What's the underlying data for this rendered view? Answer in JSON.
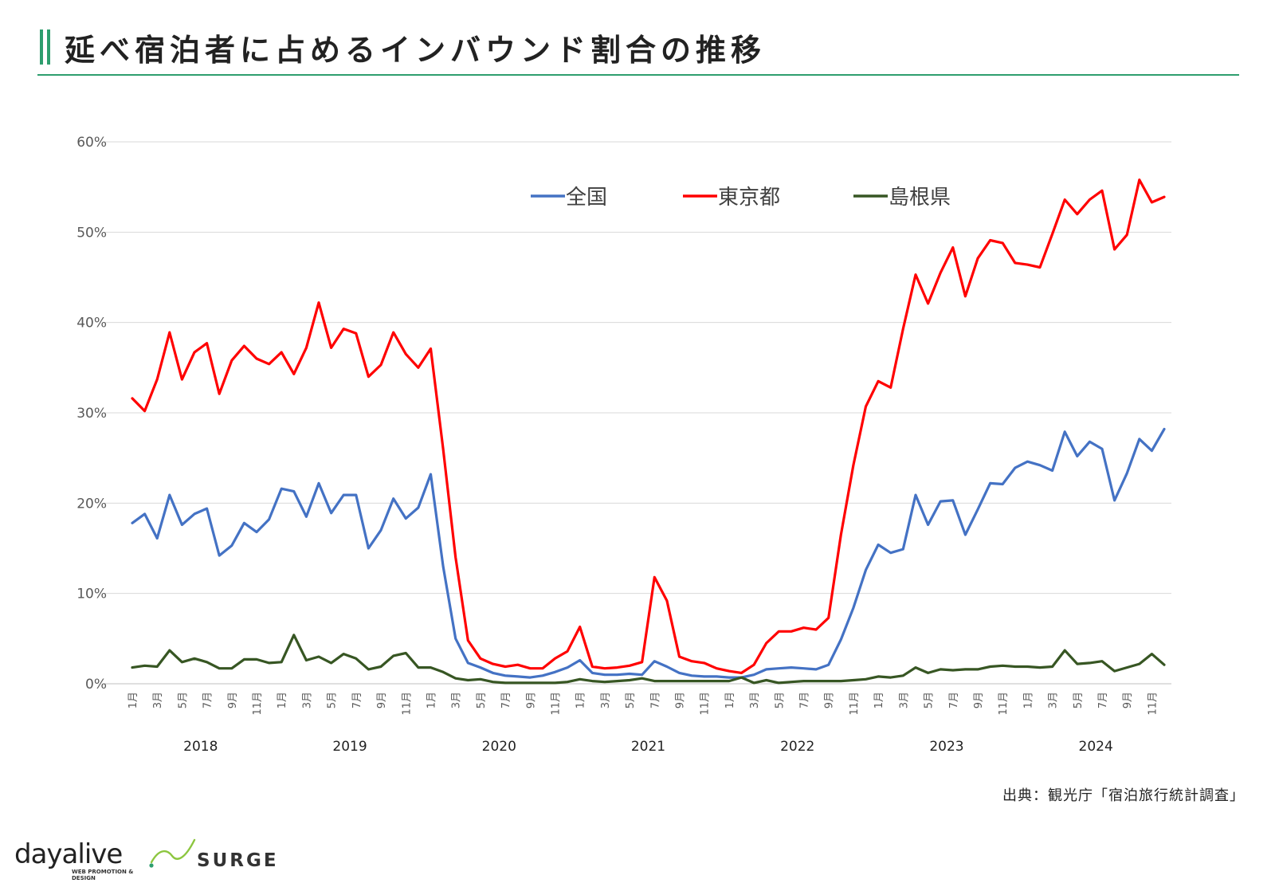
{
  "page": {
    "title": "延べ宿泊者に占めるインバウンド割合の推移",
    "source": "出典：観光庁「宿泊旅行統計調査」",
    "logos": {
      "dayalive": "dayalive",
      "dayalive_sub": "WEB PROMOTION & DESIGN",
      "surge": "SURGE"
    }
  },
  "colors": {
    "accent": "#2e9e6e",
    "national": "#4472c4",
    "tokyo": "#ff0000",
    "shimane": "#375623"
  },
  "chart_data": {
    "type": "line",
    "title": "延べ宿泊者に占めるインバウンド割合の推移",
    "xlabel": "",
    "ylabel": "",
    "ylim": [
      0,
      60
    ],
    "yticks": [
      "0%",
      "10%",
      "20%",
      "30%",
      "40%",
      "50%",
      "60%"
    ],
    "grid": true,
    "legend_position": "top",
    "month_tick_labels": [
      "1月",
      "3月",
      "5月",
      "7月",
      "9月",
      "11月"
    ],
    "years": [
      "2018",
      "2019",
      "2020",
      "2021",
      "2022",
      "2023",
      "2024"
    ],
    "series": [
      {
        "name": "全国",
        "color": "#4472c4",
        "values": [
          17.8,
          18.8,
          16.1,
          20.9,
          17.6,
          18.8,
          19.4,
          14.2,
          15.3,
          17.8,
          16.8,
          18.2,
          21.6,
          21.3,
          18.5,
          22.2,
          18.9,
          20.9,
          20.9,
          15.0,
          17.0,
          20.5,
          18.3,
          19.5,
          23.2,
          13.0,
          5.0,
          2.3,
          1.8,
          1.2,
          0.9,
          0.8,
          0.7,
          0.9,
          1.3,
          1.8,
          2.6,
          1.2,
          1.0,
          1.0,
          1.1,
          1.0,
          2.5,
          1.9,
          1.2,
          0.9,
          0.8,
          0.8,
          0.7,
          0.7,
          1.0,
          1.6,
          1.7,
          1.8,
          1.7,
          1.6,
          2.1,
          4.9,
          8.4,
          12.6,
          15.4,
          14.5,
          14.9,
          20.9,
          17.6,
          20.2,
          20.3,
          16.5,
          19.3,
          22.2,
          22.1,
          23.9,
          24.6,
          24.2,
          23.6,
          27.9,
          25.2,
          26.8,
          26.0,
          20.3,
          23.3,
          27.1,
          25.8,
          28.2
        ]
      },
      {
        "name": "東京都",
        "color": "#ff0000",
        "values": [
          31.6,
          30.2,
          33.7,
          38.9,
          33.7,
          36.7,
          37.7,
          32.1,
          35.8,
          37.4,
          36.0,
          35.4,
          36.7,
          34.3,
          37.2,
          42.2,
          37.2,
          39.3,
          38.8,
          34.0,
          35.3,
          38.9,
          36.5,
          35.0,
          37.1,
          26.0,
          14.0,
          4.8,
          2.8,
          2.2,
          1.9,
          2.1,
          1.7,
          1.7,
          2.8,
          3.6,
          6.3,
          1.9,
          1.7,
          1.8,
          2.0,
          2.4,
          11.8,
          9.2,
          3.0,
          2.5,
          2.3,
          1.7,
          1.4,
          1.2,
          2.1,
          4.5,
          5.8,
          5.8,
          6.2,
          6.0,
          7.3,
          16.5,
          24.2,
          30.7,
          33.5,
          32.8,
          39.3,
          45.3,
          42.1,
          45.5,
          48.3,
          42.9,
          47.1,
          49.1,
          48.8,
          46.6,
          46.4,
          46.1,
          49.8,
          53.6,
          52.0,
          53.6,
          54.6,
          48.1,
          49.7,
          55.8,
          53.3,
          53.9
        ]
      },
      {
        "name": "島根県",
        "color": "#375623",
        "values": [
          1.8,
          2.0,
          1.9,
          3.7,
          2.4,
          2.8,
          2.4,
          1.7,
          1.7,
          2.7,
          2.7,
          2.3,
          2.4,
          5.4,
          2.6,
          3.0,
          2.3,
          3.3,
          2.8,
          1.6,
          1.9,
          3.1,
          3.4,
          1.8,
          1.8,
          1.3,
          0.6,
          0.4,
          0.5,
          0.2,
          0.1,
          0.1,
          0.1,
          0.1,
          0.1,
          0.2,
          0.5,
          0.3,
          0.2,
          0.3,
          0.4,
          0.6,
          0.3,
          0.3,
          0.3,
          0.3,
          0.3,
          0.3,
          0.3,
          0.7,
          0.1,
          0.4,
          0.1,
          0.2,
          0.3,
          0.3,
          0.3,
          0.3,
          0.4,
          0.5,
          0.8,
          0.7,
          0.9,
          1.8,
          1.2,
          1.6,
          1.5,
          1.6,
          1.6,
          1.9,
          2.0,
          1.9,
          1.9,
          1.8,
          1.9,
          3.7,
          2.2,
          2.3,
          2.5,
          1.4,
          1.8,
          2.2,
          3.3,
          2.1
        ]
      }
    ]
  }
}
